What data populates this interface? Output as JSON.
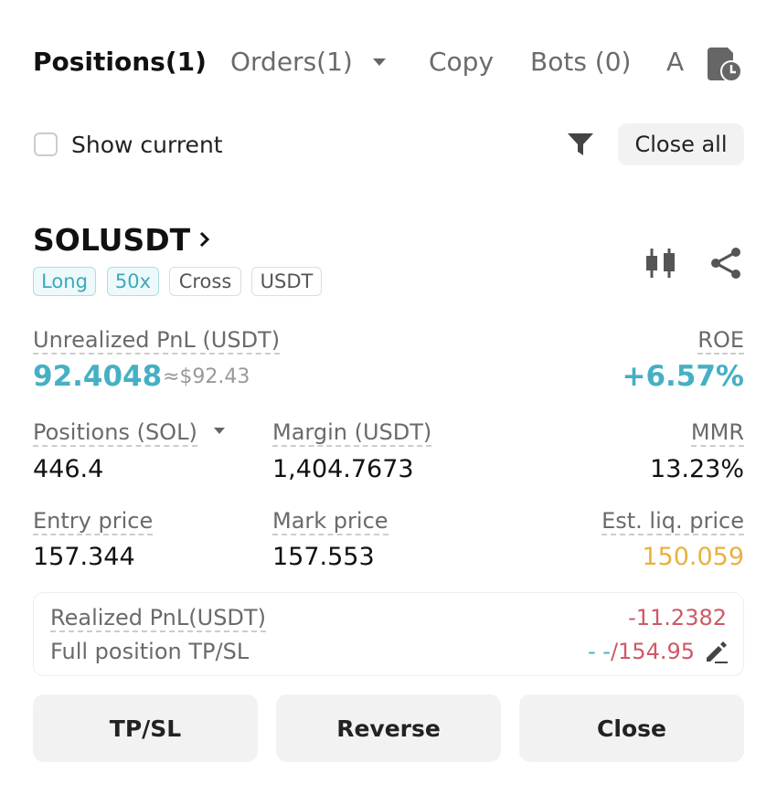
{
  "tabs": [
    "Positions(1)",
    "Orders(1)",
    "Copy",
    "Bots (0)",
    "A"
  ],
  "filter": {
    "checkbox_label": "Show current",
    "close_all": "Close all"
  },
  "position": {
    "symbol": "SOLUSDT",
    "tags": [
      "Long",
      "50x",
      "Cross",
      "USDT"
    ],
    "unrealized_pnl": {
      "label": "Unrealized PnL (USDT)",
      "value": "92.4048",
      "approx": "≈$92.43"
    },
    "roe": {
      "label": "ROE",
      "value": "+6.57%"
    },
    "fields": [
      {
        "label": "Positions (SOL)",
        "value": "446.4"
      },
      {
        "label": "Margin (USDT)",
        "value": "1,404.7673"
      },
      {
        "label": "MMR",
        "value": "13.23%"
      },
      {
        "label": "Entry price",
        "value": "157.344"
      },
      {
        "label": "Mark price",
        "value": "157.553"
      },
      {
        "label": "Est. liq. price",
        "value": "150.059"
      }
    ],
    "realized_pnl": {
      "label": "Realized PnL(USDT)",
      "value": "-11.2382"
    },
    "tp_sl": {
      "label": "Full position TP/SL",
      "tp": "- -",
      "sl": "/154.95"
    }
  },
  "buttons": [
    "TP/SL",
    "Reverse",
    "Close"
  ]
}
